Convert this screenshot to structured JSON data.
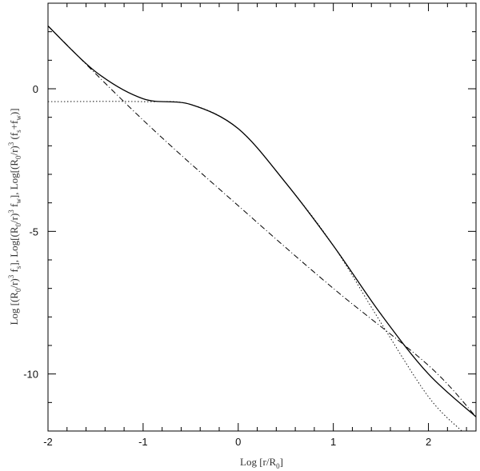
{
  "chart_data": {
    "type": "line",
    "xlabel": "Log [r/R0]",
    "ylabel": "Log [(R0/r)^3 fs], Log[(R0/r)^3 fw], Log[(R0/r)^3 (fs+fw)]",
    "xlim": [
      -2,
      2.5
    ],
    "ylim": [
      -12,
      3
    ],
    "x_ticks": [
      -2,
      -1,
      0,
      1,
      2
    ],
    "y_ticks": [
      0,
      -5,
      -10
    ],
    "x_tick_labels": [
      "-2",
      "-1",
      "0",
      "1",
      "2"
    ],
    "y_tick_labels": [
      "0",
      "-5",
      "-10"
    ],
    "grid": false,
    "series": [
      {
        "style": "solid",
        "x": [
          -2,
          -1.5,
          -1.0,
          -0.5,
          0.0,
          0.5,
          1.0,
          1.5,
          2.0,
          2.5
        ],
        "y": [
          2.2,
          0.6,
          -0.35,
          -0.55,
          -1.4,
          -3.3,
          -5.5,
          -7.9,
          -10.0,
          -11.5
        ]
      },
      {
        "style": "dash-dot",
        "x": [
          -2,
          -1.0,
          0.0,
          1.0,
          2.0,
          2.5
        ],
        "y": [
          2.2,
          -1.1,
          -4.1,
          -7.0,
          -9.7,
          -11.5
        ]
      },
      {
        "style": "dotted",
        "x": [
          -2,
          -1.0,
          -0.5,
          0.0,
          0.5,
          1.0,
          1.5,
          2.0,
          2.35
        ],
        "y": [
          -0.45,
          -0.45,
          -0.55,
          -1.4,
          -3.3,
          -5.5,
          -8.2,
          -10.8,
          -12.0
        ]
      }
    ]
  }
}
